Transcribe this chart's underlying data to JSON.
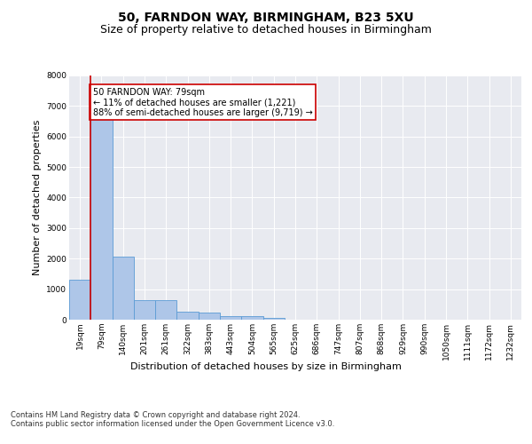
{
  "title": "50, FARNDON WAY, BIRMINGHAM, B23 5XU",
  "subtitle": "Size of property relative to detached houses in Birmingham",
  "xlabel": "Distribution of detached houses by size in Birmingham",
  "ylabel": "Number of detached properties",
  "bin_labels": [
    "19sqm",
    "79sqm",
    "140sqm",
    "201sqm",
    "261sqm",
    "322sqm",
    "383sqm",
    "443sqm",
    "504sqm",
    "565sqm",
    "625sqm",
    "686sqm",
    "747sqm",
    "807sqm",
    "868sqm",
    "929sqm",
    "990sqm",
    "1050sqm",
    "1111sqm",
    "1172sqm",
    "1232sqm"
  ],
  "bar_heights": [
    1300,
    6620,
    2080,
    650,
    640,
    255,
    245,
    130,
    120,
    70,
    0,
    0,
    0,
    0,
    0,
    0,
    0,
    0,
    0,
    0,
    0
  ],
  "bar_color": "#aec6e8",
  "bar_edge_color": "#5b9bd5",
  "property_line_color": "#cc0000",
  "annotation_text": "50 FARNDON WAY: 79sqm\n← 11% of detached houses are smaller (1,221)\n88% of semi-detached houses are larger (9,719) →",
  "annotation_box_color": "#cc0000",
  "ylim": [
    0,
    8000
  ],
  "yticks": [
    0,
    1000,
    2000,
    3000,
    4000,
    5000,
    6000,
    7000,
    8000
  ],
  "background_color": "#e8eaf0",
  "footer_text": "Contains HM Land Registry data © Crown copyright and database right 2024.\nContains public sector information licensed under the Open Government Licence v3.0.",
  "title_fontsize": 10,
  "subtitle_fontsize": 9,
  "tick_fontsize": 6.5,
  "ylabel_fontsize": 8,
  "xlabel_fontsize": 8,
  "footer_fontsize": 6,
  "annot_fontsize": 7
}
